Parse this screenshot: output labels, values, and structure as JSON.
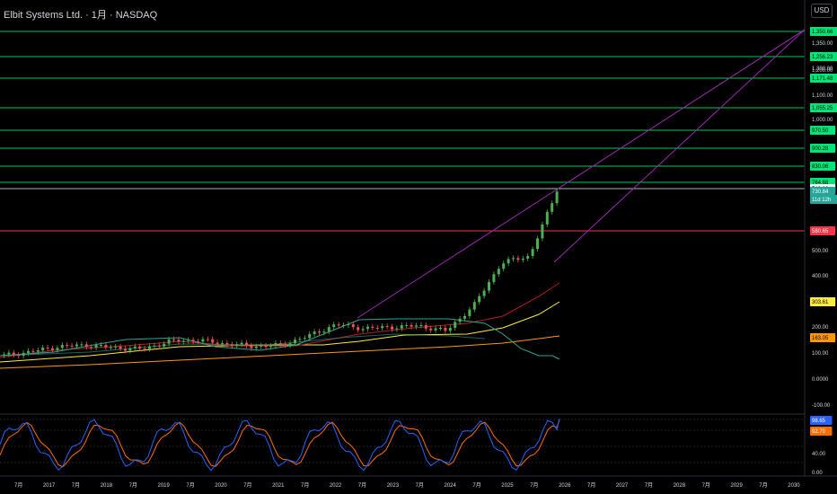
{
  "header": {
    "title": "Elbit Systems Ltd. · 1月 · NASDAQ",
    "currency_button": "USD"
  },
  "colors": {
    "up": "#26a69a",
    "candle_up": "#4caf50",
    "down": "#ef5350",
    "level_line": "#00c853",
    "level_badge": "#00e676",
    "red_line": "#f23645",
    "trend": "#9c27b0",
    "ma_yellow": "#ffeb3b",
    "ma_orange": "#ff9800",
    "ma_red": "#b71c1c",
    "ma_teal": "#26a69a",
    "k_line": "#2962ff",
    "d_line": "#ff6d00"
  },
  "price_axis": {
    "ticks": [
      "1,350.00",
      "1,300.00",
      "1,200.00",
      "1,100.00",
      "1,000.00",
      "500.00",
      "400.00",
      "300.00",
      "200.00",
      "100.00",
      "0.0000",
      "-100.00"
    ]
  },
  "price_labels": [
    {
      "text": "1,350.66",
      "kind": "green",
      "price": 1350.66
    },
    {
      "text": "1,256.23",
      "kind": "green",
      "price": 1256.23
    },
    {
      "text": "1,171.48",
      "kind": "green",
      "price": 1171.48
    },
    {
      "text": "1,055.25",
      "kind": "green",
      "price": 1055.25
    },
    {
      "text": "970.50",
      "kind": "green",
      "price": 970.5
    },
    {
      "text": "900.28",
      "kind": "green",
      "price": 900.28
    },
    {
      "text": "830.06",
      "kind": "green",
      "price": 830.06
    },
    {
      "text": "764.68",
      "kind": "green",
      "price": 764.68
    },
    {
      "text": "743.86",
      "kind": "white",
      "price": 743.86
    },
    {
      "text": "730.84",
      "kind": "current",
      "price": 730.84
    },
    {
      "text": "11d 12h",
      "kind": "countdown",
      "price": 730.84
    },
    {
      "text": "580.65",
      "kind": "red",
      "price": 580.65
    },
    {
      "text": "303.61",
      "kind": "yellow",
      "price": 303.61
    },
    {
      "text": "163.05",
      "kind": "orange",
      "price": 163.05
    }
  ],
  "oscillator": {
    "ticks": [
      "40.00",
      "0.00"
    ],
    "k_value": "98.65",
    "d_value": "92.70"
  },
  "time_axis": {
    "labels": [
      "7月",
      "2017",
      "7月",
      "2018",
      "7月",
      "2019",
      "7月",
      "2020",
      "7月",
      "2021",
      "7月",
      "2022",
      "7月",
      "2023",
      "7月",
      "2024",
      "7月",
      "2025",
      "7月",
      "2026",
      "7月",
      "2027",
      "7月",
      "2028",
      "7月",
      "2029",
      "7月",
      "2030"
    ]
  },
  "chart_data": {
    "type": "candlestick",
    "interval": "1月",
    "candles_approx": [
      {
        "date": "2016-07",
        "close": 95
      },
      {
        "date": "2017-01",
        "close": 110
      },
      {
        "date": "2017-07",
        "close": 130
      },
      {
        "date": "2018-01",
        "close": 135
      },
      {
        "date": "2018-07",
        "close": 125
      },
      {
        "date": "2019-01",
        "close": 120
      },
      {
        "date": "2019-07",
        "close": 150
      },
      {
        "date": "2020-01",
        "close": 155
      },
      {
        "date": "2020-07",
        "close": 140
      },
      {
        "date": "2021-01",
        "close": 130
      },
      {
        "date": "2021-07",
        "close": 135
      },
      {
        "date": "2022-01",
        "close": 170
      },
      {
        "date": "2022-07",
        "close": 215
      },
      {
        "date": "2023-01",
        "close": 200
      },
      {
        "date": "2023-07",
        "close": 205
      },
      {
        "date": "2024-01",
        "close": 210
      },
      {
        "date": "2024-07",
        "close": 190
      },
      {
        "date": "2025-01",
        "close": 290
      },
      {
        "date": "2025-07",
        "close": 455
      },
      {
        "date": "2025-12",
        "close": 480
      },
      {
        "date": "2026-01",
        "close": 730.84
      }
    ],
    "horizontal_levels": [
      1350.66,
      1256.23,
      1171.48,
      1055.25,
      970.5,
      900.28,
      830.06,
      764.68,
      743.86,
      580.65
    ],
    "moving_averages": {
      "yellow": 303.61,
      "orange": 163.05
    },
    "stochastic": {
      "k": 98.65,
      "d": 92.7
    }
  }
}
